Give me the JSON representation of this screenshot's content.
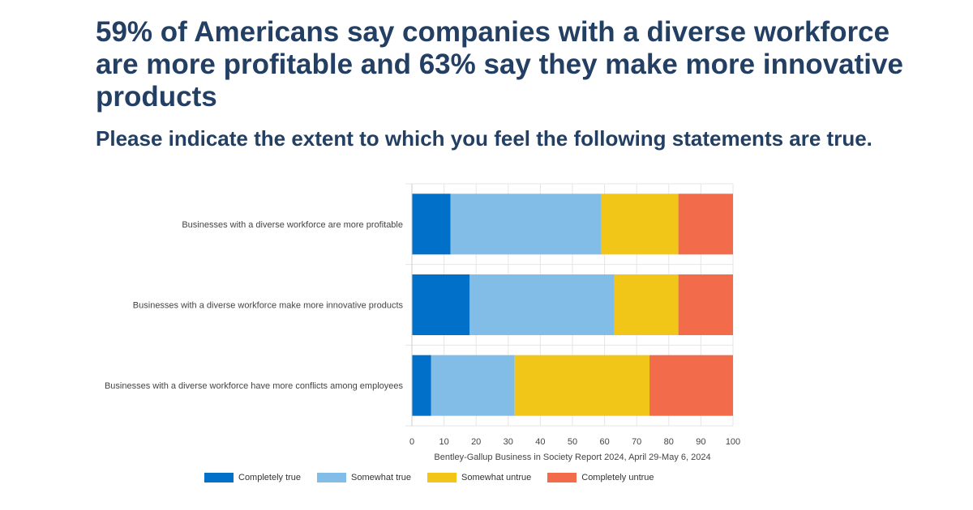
{
  "headline": "59% of Americans say companies with a diverse workforce are more profitable and 63% say they make more innovative products",
  "subheadline": "Please indicate the extent to which you feel the following statements are true.",
  "chart_data": {
    "type": "bar",
    "orientation": "horizontal",
    "stacked": true,
    "categories": [
      "Businesses with a diverse workforce are more profitable",
      "Businesses with a diverse workforce make more innovative products",
      "Businesses with a diverse workforce have more conflicts among employees"
    ],
    "series": [
      {
        "name": "Completely true",
        "color": "#0070c9",
        "values": [
          12,
          18,
          6
        ]
      },
      {
        "name": "Somewhat true",
        "color": "#82bde8",
        "values": [
          47,
          45,
          26
        ]
      },
      {
        "name": "Somewhat untrue",
        "color": "#f2c519",
        "values": [
          24,
          20,
          42
        ]
      },
      {
        "name": "Completely untrue",
        "color": "#f26b4a",
        "values": [
          17,
          17,
          26
        ]
      }
    ],
    "x_ticks": [
      "0",
      "10",
      "20",
      "30",
      "40",
      "50",
      "60",
      "70",
      "80",
      "90",
      "100"
    ],
    "xlim": [
      0,
      100
    ],
    "xlabel": "Bentley-Gallup Business in Society Report 2024, April 29-May 6, 2024",
    "legend_position": "bottom",
    "grid": true
  }
}
